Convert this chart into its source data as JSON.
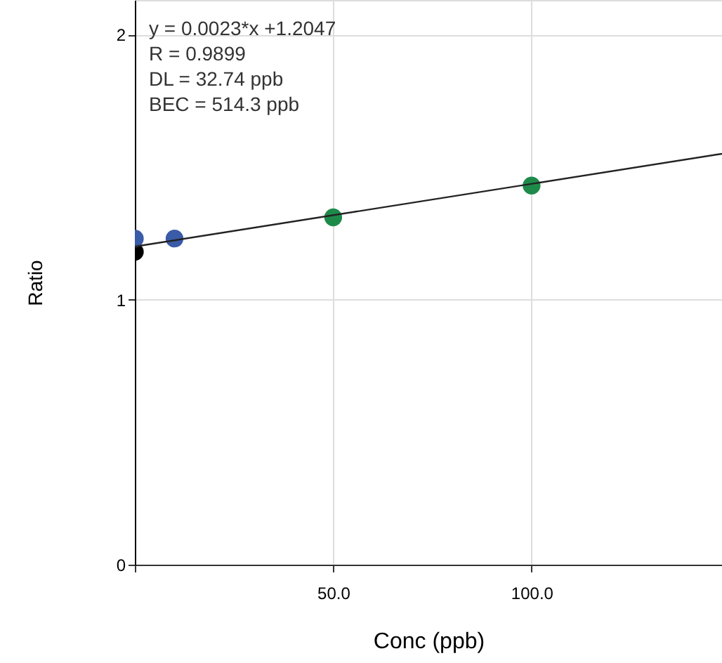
{
  "chart_data": {
    "type": "scatter",
    "xlabel": "Conc (ppb)",
    "ylabel": "Ratio",
    "annotations": [
      "y = 0.0023*x +1.2047",
      "R = 0.9899",
      "DL = 32.74 ppb",
      "BEC = 514.3 ppb"
    ],
    "series": [
      {
        "color": "#000000",
        "x": [
          0
        ],
        "values": [
          1.18
        ],
        "marker": "circle"
      },
      {
        "color": "#3a5ba8",
        "x": [
          0,
          10
        ],
        "values": [
          1.23,
          1.23
        ],
        "marker": "circle"
      },
      {
        "color": "#1e8a4a",
        "x": [
          50,
          100
        ],
        "values": [
          1.31,
          1.43
        ],
        "marker": "circle"
      },
      {
        "type": "line",
        "color": "#222222",
        "x": [
          0,
          148
        ],
        "values": [
          1.2,
          1.55
        ],
        "marker": "none",
        "line_style": "solid"
      }
    ],
    "xlim": [
      0,
      148
    ],
    "ylim": [
      0,
      2.13
    ],
    "xticks": [
      {
        "value": 0,
        "label": null
      },
      {
        "value": 50,
        "label": "50.0"
      },
      {
        "value": 100,
        "label": "100.0"
      }
    ],
    "yticks": [
      0,
      1,
      2
    ],
    "grid": true
  }
}
